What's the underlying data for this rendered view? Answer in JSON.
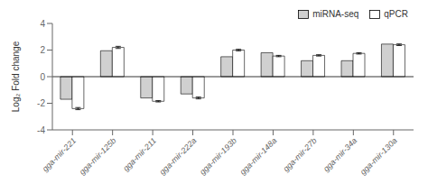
{
  "chart_data": {
    "type": "bar",
    "categories": [
      "gga-mir-221",
      "gga-mir-125b",
      "gga-mir-211",
      "gga-mir-222a",
      "gga-mir-193b",
      "gga-mir-148a",
      "gga-mir-27b",
      "gga-mir-34a",
      "gga-mir-130a"
    ],
    "series": [
      {
        "name": "miRNA-seq",
        "color": "#d0d0d0",
        "values": [
          -1.7,
          1.95,
          -1.6,
          -1.3,
          1.5,
          1.8,
          1.2,
          1.2,
          2.45
        ]
      },
      {
        "name": "qPCR",
        "color": "#ffffff",
        "values": [
          -2.4,
          2.2,
          -1.85,
          -1.6,
          2.0,
          1.55,
          1.6,
          1.75,
          2.4
        ],
        "errors": [
          0.08,
          0.08,
          0.05,
          0.07,
          0.06,
          0.05,
          0.05,
          0.05,
          0.06
        ]
      }
    ],
    "ylabel": "Log₂ Fold change",
    "ylim": [
      -4,
      4
    ],
    "yticks": [
      -4,
      -2,
      0,
      2,
      4
    ],
    "grid": false,
    "legend": "upper right"
  }
}
